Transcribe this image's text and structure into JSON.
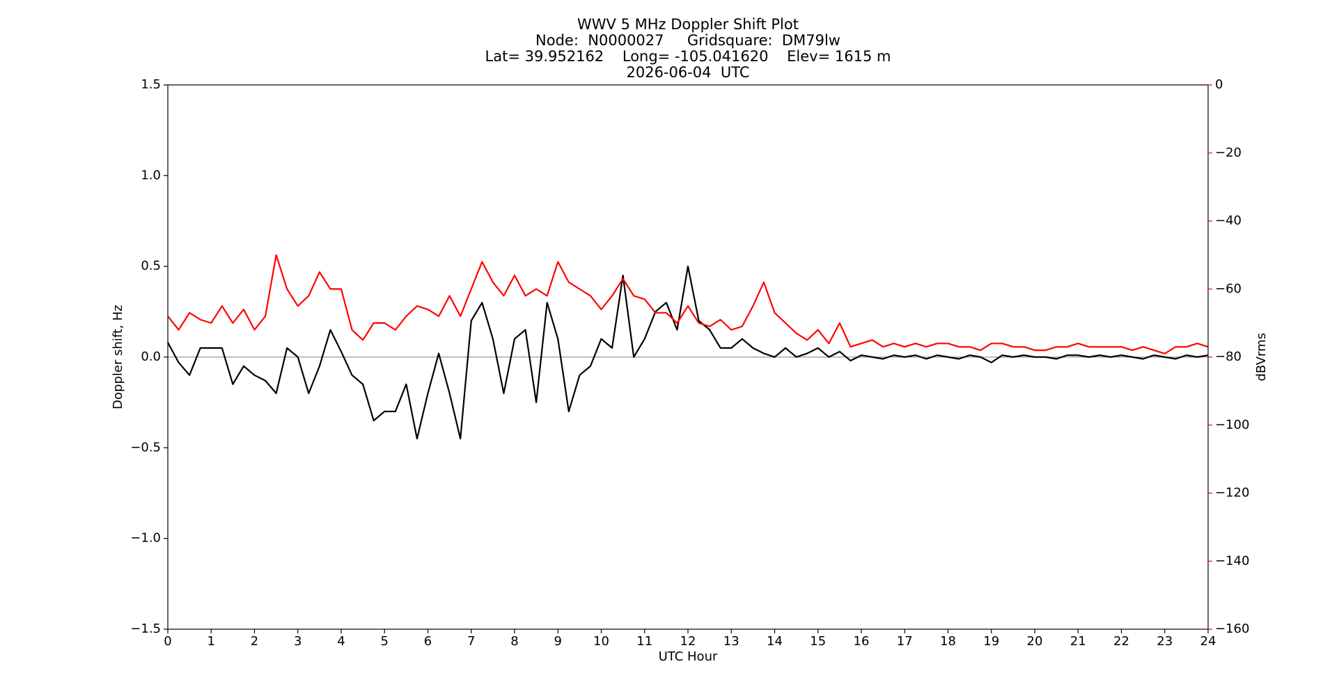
{
  "chart_data": {
    "type": "line",
    "title": [
      "WWV 5 MHz Doppler Shift Plot",
      "Node:  N0000027     Gridsquare:  DM79lw",
      "Lat= 39.952162    Long= -105.041620    Elev= 1615 m",
      "2026-06-04  UTC"
    ],
    "xlabel": "UTC Hour",
    "ylabel": "Doppler shift, Hz",
    "y2label": "dBVrms",
    "y2color": "#ff0000",
    "xlim": [
      0,
      24
    ],
    "xticks": [
      0,
      1,
      2,
      3,
      4,
      5,
      6,
      7,
      8,
      9,
      10,
      11,
      12,
      13,
      14,
      15,
      16,
      17,
      18,
      19,
      20,
      21,
      22,
      23,
      24
    ],
    "ylim": [
      -1.5,
      1.5
    ],
    "yticks": [
      {
        "value": -1.5,
        "label": "−1.5"
      },
      {
        "value": -1.0,
        "label": "−1.0"
      },
      {
        "value": -0.5,
        "label": "−0.5"
      },
      {
        "value": 0,
        "label": "0.0"
      },
      0.5,
      {
        "value": 1.0,
        "label": "1.0"
      },
      1.5
    ],
    "y2lim": [
      -160,
      0
    ],
    "y2ticks": [
      {
        "value": -160,
        "label": "−160"
      },
      {
        "value": -140,
        "label": "−140"
      },
      {
        "value": -120,
        "label": "−120"
      },
      {
        "value": -100,
        "label": "−100"
      },
      {
        "value": -80,
        "label": "−80"
      },
      {
        "value": -60,
        "label": "−60"
      },
      {
        "value": -40,
        "label": "−40"
      },
      {
        "value": -20,
        "label": "−20"
      },
      0
    ],
    "x": [
      0,
      0.25,
      0.5,
      0.75,
      1,
      1.25,
      1.5,
      1.75,
      2,
      2.25,
      2.5,
      2.75,
      3,
      3.25,
      3.5,
      3.75,
      4,
      4.25,
      4.5,
      4.75,
      5,
      5.25,
      5.5,
      5.75,
      6,
      6.25,
      6.5,
      6.75,
      7,
      7.25,
      7.5,
      7.75,
      8,
      8.25,
      8.5,
      8.75,
      9,
      9.25,
      9.5,
      9.75,
      10,
      10.25,
      10.5,
      10.75,
      11,
      11.25,
      11.5,
      11.75,
      12,
      12.25,
      12.5,
      12.75,
      13,
      13.25,
      13.5,
      13.75,
      14,
      14.25,
      14.5,
      14.75,
      15,
      15.25,
      15.5,
      15.75,
      16,
      16.25,
      16.5,
      16.75,
      17,
      17.25,
      17.5,
      17.75,
      18,
      18.25,
      18.5,
      18.75,
      19,
      19.25,
      19.5,
      19.75,
      20,
      20.25,
      20.5,
      20.75,
      21,
      21.25,
      21.5,
      21.75,
      22,
      22.25,
      22.5,
      22.75,
      23,
      23.25,
      23.5,
      23.75,
      24
    ],
    "series": [
      {
        "color": "#000000",
        "values": [
          0.08,
          -0.03,
          -0.1,
          0.05,
          0.05,
          0.05,
          -0.15,
          -0.05,
          -0.1,
          -0.13,
          -0.2,
          0.05,
          0.0,
          -0.2,
          -0.05,
          0.15,
          0.03,
          -0.1,
          -0.15,
          -0.35,
          -0.3,
          -0.3,
          -0.15,
          -0.45,
          -0.2,
          0.02,
          -0.2,
          -0.45,
          0.2,
          0.3,
          0.1,
          -0.2,
          0.1,
          0.15,
          -0.25,
          0.3,
          0.1,
          -0.3,
          -0.1,
          -0.05,
          0.1,
          0.05,
          0.45,
          0.0,
          0.1,
          0.25,
          0.3,
          0.15,
          0.5,
          0.2,
          0.15,
          0.05,
          0.05,
          0.1,
          0.05,
          0.02,
          0.0,
          0.05,
          0.0,
          0.02,
          0.05,
          0.0,
          0.03,
          -0.02,
          0.01,
          0,
          -0.01,
          0.01,
          0,
          0.01,
          -0.01,
          0.01,
          0,
          -0.01,
          0.01,
          0,
          -0.03,
          0.01,
          0,
          0.01,
          0,
          0,
          -0.01,
          0.01,
          0.01,
          0,
          0.01,
          0,
          0.01,
          0,
          -0.01,
          0.01,
          0,
          -0.01,
          0.01,
          0,
          0.01
        ]
      },
      {
        "color": "#ff0000",
        "axis": "y2",
        "values": [
          -68,
          -72,
          -67,
          -69,
          -70,
          -65,
          -70,
          -66,
          -72,
          -68,
          -50,
          -60,
          -65,
          -62,
          -55,
          -60,
          -60,
          -72,
          -75,
          -70,
          -70,
          -72,
          -68,
          -65,
          -66,
          -68,
          -62,
          -68,
          -60,
          -52,
          -58,
          -62,
          -56,
          -62,
          -60,
          -62,
          -52,
          -58,
          -60,
          -62,
          -66,
          -62,
          -57,
          -62,
          -63,
          -67,
          -67,
          -70,
          -65,
          -70,
          -71,
          -69,
          -72,
          -71,
          -65,
          -58,
          -67,
          -70,
          -73,
          -75,
          -72,
          -76,
          -70,
          -77,
          -76,
          -75,
          -77,
          -76,
          -77,
          -76,
          -77,
          -76,
          -76,
          -77,
          -77,
          -78,
          -76,
          -76,
          -77,
          -77,
          -78,
          -78,
          -77,
          -77,
          -76,
          -77,
          -77,
          -77,
          -77,
          -78,
          -77,
          -78,
          -79,
          -77,
          -77,
          -76,
          -77
        ]
      }
    ]
  }
}
